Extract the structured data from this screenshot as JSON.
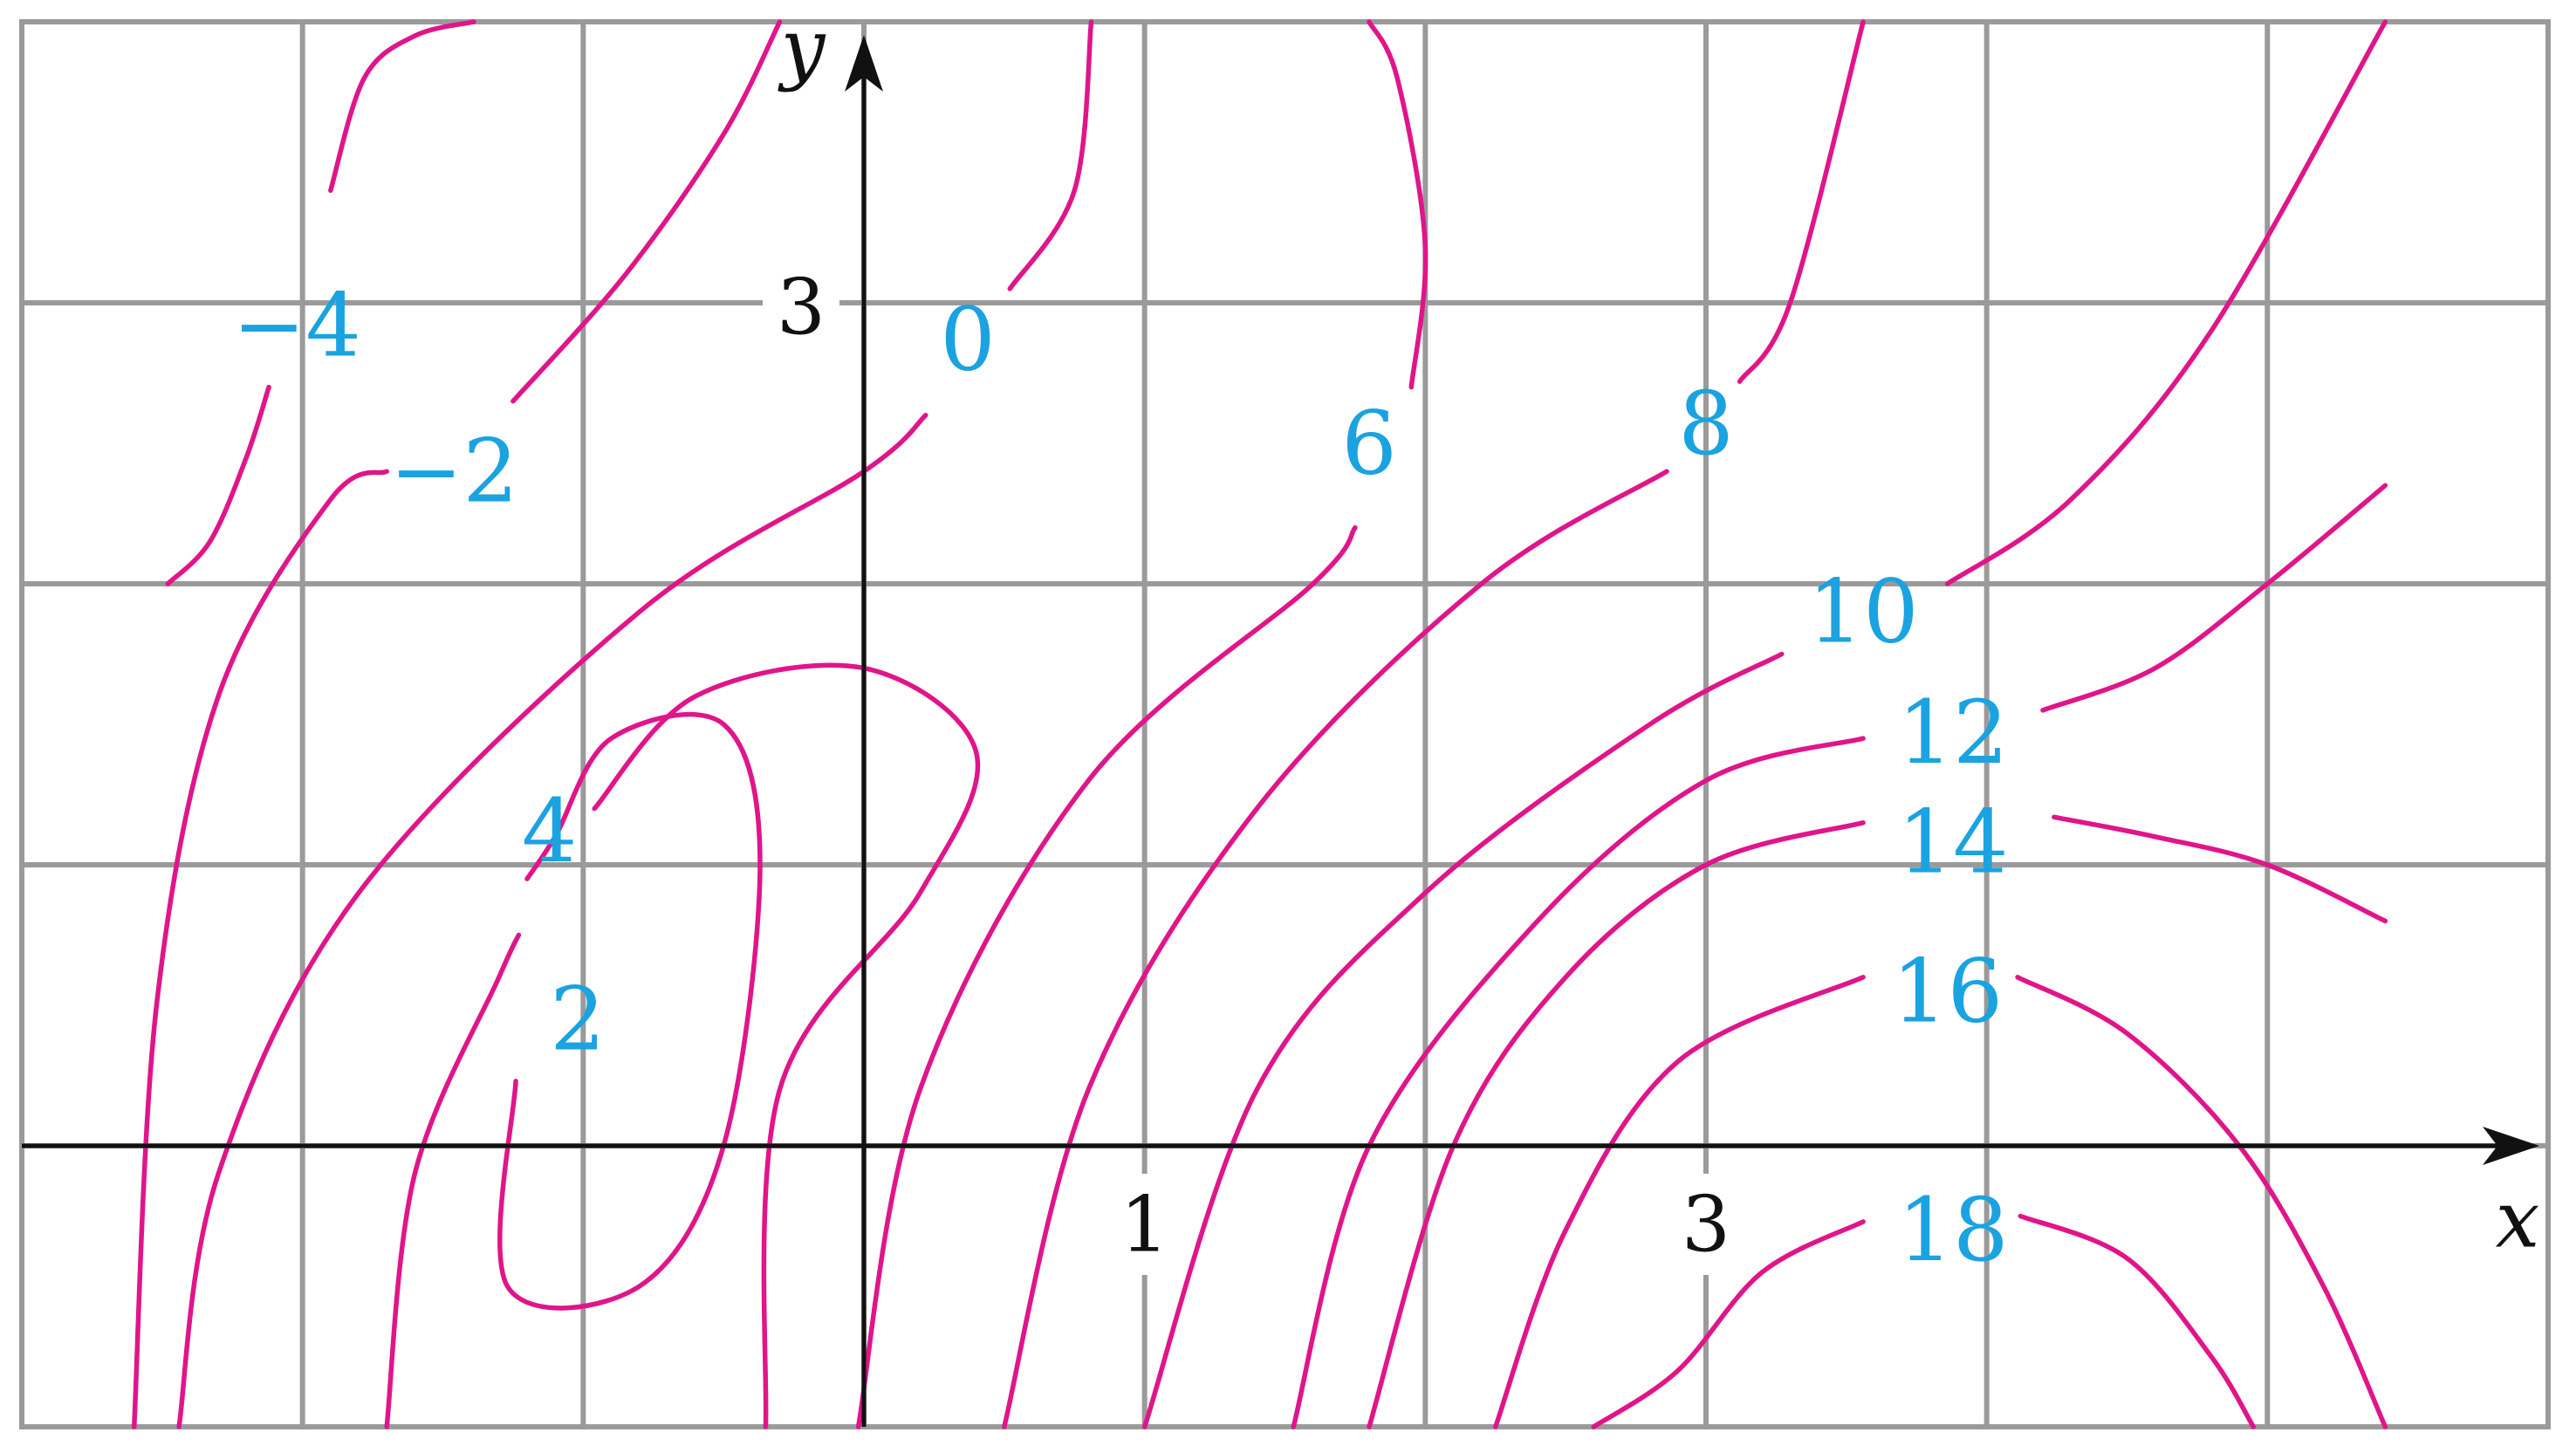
{
  "chart_data": {
    "type": "contour",
    "title": "",
    "xlabel": "x",
    "ylabel": "y",
    "xlim": [
      -3,
      6
    ],
    "ylim": [
      -1,
      4
    ],
    "grid": true,
    "x_ticks": [
      {
        "value": 1,
        "label": "1"
      },
      {
        "value": 3,
        "label": "3"
      }
    ],
    "y_ticks": [
      {
        "value": 3,
        "label": "3"
      }
    ],
    "contour_color": "#e0158a",
    "label_color": "#1aa3e0",
    "levels": [
      {
        "label": "−4",
        "value": -4,
        "label_at": [
          -2.02,
          2.92
        ],
        "segments": [
          [
            [
              -2.48,
              2.0
            ],
            [
              -2.33,
              2.15
            ],
            [
              -2.2,
              2.45
            ],
            [
              -2.12,
              2.7
            ]
          ],
          [
            [
              -1.9,
              3.4
            ],
            [
              -1.78,
              3.8
            ],
            [
              -1.6,
              3.95
            ],
            [
              -1.39,
              4.0
            ]
          ]
        ]
      },
      {
        "label": "−2",
        "value": -2,
        "label_at": [
          -1.46,
          2.4
        ],
        "segments": [
          [
            [
              -2.6,
              -1.0
            ],
            [
              -2.52,
              0.5
            ],
            [
              -2.3,
              1.6
            ],
            [
              -1.9,
              2.3
            ],
            [
              -1.7,
              2.4
            ]
          ],
          [
            [
              -1.25,
              2.65
            ],
            [
              -0.85,
              3.1
            ],
            [
              -0.5,
              3.6
            ],
            [
              -0.3,
              4.0
            ]
          ]
        ]
      },
      {
        "label": "0",
        "value": 0,
        "label_at": [
          0.37,
          2.87
        ],
        "segments": [
          [
            [
              -2.44,
              -1.0
            ],
            [
              -2.3,
              -0.1
            ],
            [
              -1.8,
              0.9
            ],
            [
              -0.8,
              1.9
            ],
            [
              0.0,
              2.4
            ],
            [
              0.22,
              2.6
            ]
          ],
          [
            [
              0.52,
              3.05
            ],
            [
              0.75,
              3.4
            ],
            [
              0.81,
              4.0
            ]
          ]
        ]
      },
      {
        "label": "2",
        "value": 2,
        "label_at": [
          -1.02,
          0.45
        ],
        "segments": [
          [
            [
              -1.24,
              0.23
            ],
            [
              -1.27,
              -0.5
            ],
            [
              -0.8,
              -0.5
            ],
            [
              -0.5,
              0.0
            ],
            [
              -0.37,
              1.0
            ],
            [
              -0.5,
              1.5
            ],
            [
              -0.9,
              1.45
            ],
            [
              -1.1,
              1.1
            ],
            [
              -1.2,
              0.95
            ]
          ]
        ]
      },
      {
        "label": "4",
        "value": 4,
        "label_at": [
          -1.12,
          1.12
        ],
        "segments": [
          [
            [
              -1.7,
              -1.0
            ],
            [
              -1.6,
              -0.1
            ],
            [
              -1.3,
              0.6
            ],
            [
              -1.23,
              0.75
            ]
          ],
          [
            [
              -0.96,
              1.2
            ],
            [
              -0.6,
              1.6
            ],
            [
              0.0,
              1.7
            ],
            [
              0.4,
              1.4
            ],
            [
              0.2,
              0.9
            ],
            [
              -0.3,
              0.2
            ],
            [
              -0.35,
              -1.0
            ]
          ]
        ]
      },
      {
        "label": "6",
        "value": 6,
        "label_at": [
          1.8,
          2.5
        ],
        "segments": [
          [
            [
              -0.02,
              -1.0
            ],
            [
              0.2,
              0.2
            ],
            [
              0.8,
              1.3
            ],
            [
              1.6,
              2.0
            ],
            [
              1.75,
              2.2
            ]
          ],
          [
            [
              1.95,
              2.7
            ],
            [
              2.0,
              3.2
            ],
            [
              1.9,
              3.8
            ],
            [
              1.8,
              4.0
            ]
          ]
        ]
      },
      {
        "label": "8",
        "value": 8,
        "label_at": [
          3.0,
          2.57
        ],
        "segments": [
          [
            [
              0.5,
              -1.0
            ],
            [
              0.8,
              0.2
            ],
            [
              1.4,
              1.2
            ],
            [
              2.2,
              2.0
            ],
            [
              2.86,
              2.4
            ]
          ],
          [
            [
              3.12,
              2.72
            ],
            [
              3.3,
              3.0
            ],
            [
              3.56,
              4.0
            ]
          ]
        ]
      },
      {
        "label": "10",
        "value": 10,
        "label_at": [
          3.56,
          1.9
        ],
        "segments": [
          [
            [
              1.0,
              -1.0
            ],
            [
              1.4,
              0.2
            ],
            [
              2.0,
              0.9
            ],
            [
              2.8,
              1.5
            ],
            [
              3.27,
              1.75
            ]
          ],
          [
            [
              3.86,
              2.0
            ],
            [
              4.3,
              2.3
            ],
            [
              4.8,
              2.9
            ],
            [
              5.42,
              4.0
            ]
          ]
        ]
      },
      {
        "label": "12",
        "value": 12,
        "label_at": [
          3.88,
          1.47
        ],
        "segments": [
          [
            [
              1.53,
              -1.0
            ],
            [
              1.8,
              0.0
            ],
            [
              2.4,
              0.8
            ],
            [
              3.0,
              1.3
            ],
            [
              3.56,
              1.45
            ]
          ],
          [
            [
              4.2,
              1.55
            ],
            [
              4.6,
              1.7
            ],
            [
              5.0,
              2.0
            ],
            [
              5.42,
              2.35
            ]
          ]
        ]
      },
      {
        "label": "14",
        "value": 14,
        "label_at": [
          3.88,
          1.08
        ],
        "segments": [
          [
            [
              1.8,
              -1.0
            ],
            [
              2.1,
              0.0
            ],
            [
              2.5,
              0.6
            ],
            [
              3.0,
              1.0
            ],
            [
              3.56,
              1.15
            ]
          ],
          [
            [
              4.24,
              1.17
            ],
            [
              4.6,
              1.1
            ],
            [
              5.0,
              1.0
            ],
            [
              5.42,
              0.8
            ]
          ]
        ]
      },
      {
        "label": "16",
        "value": 16,
        "label_at": [
          3.86,
          0.55
        ],
        "segments": [
          [
            [
              2.25,
              -1.0
            ],
            [
              2.5,
              -0.3
            ],
            [
              2.9,
              0.3
            ],
            [
              3.56,
              0.6
            ]
          ],
          [
            [
              4.11,
              0.6
            ],
            [
              4.5,
              0.4
            ],
            [
              4.9,
              0.0
            ],
            [
              5.2,
              -0.5
            ],
            [
              5.42,
              -1.0
            ]
          ]
        ]
      },
      {
        "label": "18",
        "value": 18,
        "label_at": [
          3.88,
          -0.3
        ],
        "segments": [
          [
            [
              2.6,
              -1.0
            ],
            [
              2.9,
              -0.8
            ],
            [
              3.2,
              -0.45
            ],
            [
              3.56,
              -0.27
            ]
          ],
          [
            [
              4.12,
              -0.25
            ],
            [
              4.5,
              -0.4
            ],
            [
              4.8,
              -0.75
            ],
            [
              4.95,
              -1.0
            ]
          ]
        ]
      }
    ]
  }
}
